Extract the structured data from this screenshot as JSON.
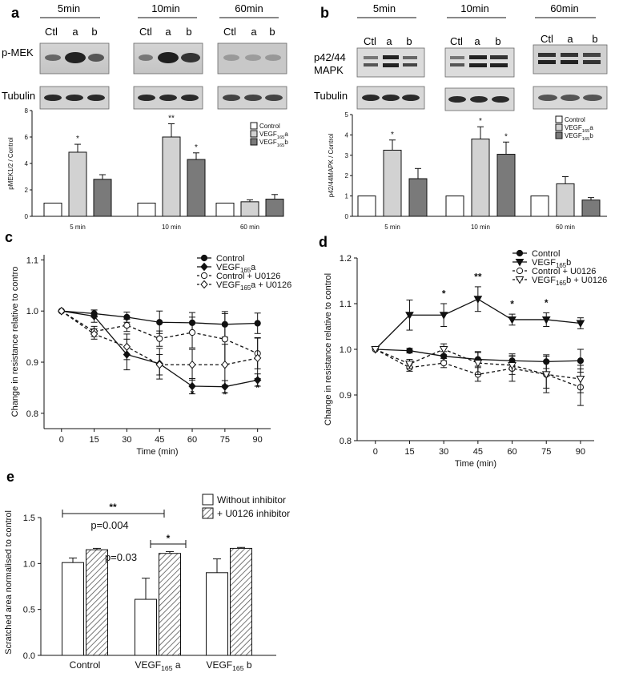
{
  "panels": {
    "a": {
      "letter": "a",
      "times": [
        "5min",
        "10min",
        "60min"
      ],
      "lanes": [
        "Ctl",
        "a",
        "b"
      ],
      "rows": [
        "p-MEK",
        "Tubulin"
      ],
      "chart_data": {
        "type": "bar",
        "categories": [
          "5 min",
          "10 min",
          "60 min"
        ],
        "series": [
          {
            "name": "Control",
            "values": [
              1.0,
              1.0,
              1.0
            ],
            "errors": [
              0,
              0,
              0
            ]
          },
          {
            "name": "VEGF165a",
            "values": [
              4.85,
              6.0,
              1.1
            ],
            "errors": [
              0.6,
              1.0,
              0.15
            ]
          },
          {
            "name": "VEGF165b",
            "values": [
              2.8,
              4.3,
              1.3
            ],
            "errors": [
              0.35,
              0.5,
              0.35
            ]
          }
        ],
        "legend_parts": [
          {
            "main": "Control",
            "sub": "",
            "tail": ""
          },
          {
            "main": "VEGF",
            "sub": "165",
            "tail": "a"
          },
          {
            "main": "VEGF",
            "sub": "165",
            "tail": "b"
          }
        ],
        "significance": [
          [
            "",
            "*",
            ""
          ],
          [
            "",
            "**",
            "*"
          ],
          [
            "",
            "",
            ""
          ]
        ],
        "ylabel": "pMEK1/2 / Control",
        "yticks": [
          "0",
          "2",
          "4",
          "6",
          "8"
        ],
        "ylim": [
          0,
          8
        ],
        "legend": "top-right"
      }
    },
    "b": {
      "letter": "b",
      "times": [
        "5min",
        "10min",
        "60min"
      ],
      "lanes": [
        "Ctl",
        "a",
        "b"
      ],
      "rows": [
        "p42/44",
        "MAPK",
        "Tubulin"
      ],
      "chart_data": {
        "type": "bar",
        "categories": [
          "5 min",
          "10 min",
          "60 min"
        ],
        "series": [
          {
            "name": "Control",
            "values": [
              1.0,
              1.0,
              1.0
            ],
            "errors": [
              0,
              0,
              0
            ]
          },
          {
            "name": "VEGF165a",
            "values": [
              3.25,
              3.8,
              1.6
            ],
            "errors": [
              0.5,
              0.6,
              0.35
            ]
          },
          {
            "name": "VEGF165b",
            "values": [
              1.85,
              3.05,
              0.8
            ],
            "errors": [
              0.5,
              0.6,
              0.12
            ]
          }
        ],
        "legend_parts": [
          {
            "main": "Control",
            "sub": "",
            "tail": ""
          },
          {
            "main": "VEGF",
            "sub": "165",
            "tail": "a"
          },
          {
            "main": "VEGF",
            "sub": "165",
            "tail": "b"
          }
        ],
        "significance": [
          [
            "",
            "*",
            ""
          ],
          [
            "",
            "*",
            "*"
          ],
          [
            "",
            "",
            ""
          ]
        ],
        "ylabel": "p42/44MAPK / Control",
        "yticks": [
          "0",
          "1",
          "2",
          "3",
          "4",
          "5"
        ],
        "ylim": [
          0,
          5
        ],
        "legend": "top-right"
      }
    },
    "c": {
      "letter": "c",
      "chart_data": {
        "type": "line",
        "x": [
          0,
          15,
          30,
          45,
          60,
          75,
          90
        ],
        "xticks": [
          "0",
          "15",
          "30",
          "45",
          "60",
          "75",
          "90"
        ],
        "xlabel": "Time (min)",
        "ylabel": "Change in resistance relative to contro",
        "yticks": [
          "0.8",
          "0.9",
          "1.0",
          "1.1"
        ],
        "ylim": [
          0.77,
          1.11
        ],
        "xlim": [
          -8,
          96
        ],
        "series": [
          {
            "name": "Control",
            "marker": "filled-circle",
            "dash": false,
            "values": [
              1.0,
              0.995,
              0.988,
              0.978,
              0.977,
              0.974,
              0.976
            ],
            "errors": [
              0,
              0.007,
              0.01,
              0.022,
              0.02,
              0.025,
              0.02
            ]
          },
          {
            "name": "VEGF165a",
            "marker": "filled-diamond",
            "dash": false,
            "values": [
              1.0,
              0.99,
              0.915,
              0.897,
              0.853,
              0.852,
              0.865
            ],
            "errors": [
              0,
              0.012,
              0.03,
              0.03,
              0.015,
              0.012,
              0.012
            ]
          },
          {
            "name": "Control + U0126",
            "marker": "open-circle",
            "dash": true,
            "values": [
              1.0,
              0.96,
              0.972,
              0.946,
              0.958,
              0.945,
              0.917
            ],
            "errors": [
              0,
              0.01,
              0.012,
              0.015,
              0.03,
              0.05,
              0.03
            ]
          },
          {
            "name": "VEGF165a + U0126",
            "marker": "open-diamond",
            "dash": true,
            "values": [
              1.0,
              0.955,
              0.93,
              0.895,
              0.895,
              0.895,
              0.908
            ],
            "errors": [
              0,
              0.01,
              0.025,
              0.02,
              0.03,
              0.04,
              0.04
            ]
          }
        ],
        "legend_parts": [
          {
            "main": "Control",
            "sub": "",
            "tail": ""
          },
          {
            "main": "VEGF",
            "sub": "165",
            "tail": "a"
          },
          {
            "main": "Control + U0126",
            "sub": "",
            "tail": ""
          },
          {
            "main": "VEGF",
            "sub": "165",
            "tail": "a + U0126"
          }
        ],
        "significance": [
          {
            "x": 60,
            "y": 0.832,
            "label": "*"
          },
          {
            "x": 75,
            "y": 0.83,
            "label": "*"
          },
          {
            "x": 90,
            "y": 0.844,
            "label": "*"
          }
        ],
        "legend": "top-right"
      }
    },
    "d": {
      "letter": "d",
      "chart_data": {
        "type": "line",
        "x": [
          0,
          15,
          30,
          45,
          60,
          75,
          90
        ],
        "xticks": [
          "0",
          "15",
          "30",
          "45",
          "60",
          "75",
          "90"
        ],
        "xlabel": "Time (min)",
        "ylabel": "Change in resistance relative to control",
        "yticks": [
          "0.8",
          "0.9",
          "1.0",
          "1.1",
          "1.2"
        ],
        "ylim": [
          0.8,
          1.2
        ],
        "xlim": [
          -8,
          96
        ],
        "series": [
          {
            "name": "Control",
            "marker": "filled-circle",
            "dash": false,
            "values": [
              1.0,
              0.997,
              0.985,
              0.978,
              0.975,
              0.973,
              0.975
            ],
            "errors": [
              0,
              0.005,
              0.01,
              0.015,
              0.015,
              0.015,
              0.025
            ]
          },
          {
            "name": "VEGF165b",
            "marker": "filled-triangle-down",
            "dash": false,
            "values": [
              1.0,
              1.075,
              1.075,
              1.11,
              1.065,
              1.065,
              1.057
            ],
            "errors": [
              0,
              0.033,
              0.025,
              0.027,
              0.012,
              0.015,
              0.012
            ]
          },
          {
            "name": "Control + U0126",
            "marker": "open-circle",
            "dash": true,
            "values": [
              1.0,
              0.96,
              0.97,
              0.945,
              0.958,
              0.945,
              0.917
            ],
            "errors": [
              0,
              0.008,
              0.01,
              0.015,
              0.028,
              0.04,
              0.04
            ]
          },
          {
            "name": "VEGF165b + U0126",
            "marker": "open-triangle-down",
            "dash": true,
            "values": [
              1.0,
              0.968,
              1.0,
              0.97,
              0.965,
              0.945,
              0.935
            ],
            "errors": [
              0,
              0.01,
              0.012,
              0.025,
              0.02,
              0.03,
              0.03
            ]
          }
        ],
        "legend_parts": [
          {
            "main": "Control",
            "sub": "",
            "tail": ""
          },
          {
            "main": "VEGF",
            "sub": "165",
            "tail": "b"
          },
          {
            "main": "Control + U0126",
            "sub": "",
            "tail": ""
          },
          {
            "main": "VEGF",
            "sub": "165",
            "tail": "b + U0126"
          }
        ],
        "significance": [
          {
            "x": 30,
            "y": 1.115,
            "label": "*"
          },
          {
            "x": 45,
            "y": 1.152,
            "label": "**"
          },
          {
            "x": 60,
            "y": 1.092,
            "label": "*"
          },
          {
            "x": 75,
            "y": 1.095,
            "label": "*"
          }
        ],
        "legend": "top-right"
      }
    },
    "e": {
      "letter": "e",
      "chart_data": {
        "type": "bar",
        "categories": [
          "Control",
          "VEGF165 a",
          "VEGF165 b"
        ],
        "category_parts": [
          {
            "main": "Control",
            "sub": "",
            "tail": ""
          },
          {
            "main": "VEGF",
            "sub": "165",
            "tail": " a"
          },
          {
            "main": "VEGF",
            "sub": "165",
            "tail": " b"
          }
        ],
        "series": [
          {
            "name": "Without inhibitor",
            "values": [
              1.01,
              0.61,
              0.9
            ],
            "errors": [
              0.05,
              0.23,
              0.15
            ]
          },
          {
            "name": "+ U0126 inhibitor",
            "values": [
              1.15,
              1.11,
              1.165
            ],
            "errors": [
              0.015,
              0.02,
              0.01
            ]
          }
        ],
        "ylabel": "Scratched area normalised to control",
        "yticks": [
          "0.0",
          "0.5",
          "1.0",
          "1.5"
        ],
        "ylim": [
          0,
          1.5
        ],
        "brackets": [
          {
            "label": "**",
            "pvalue": "p=0.004"
          },
          {
            "label": "*",
            "pvalue": "p=0.03"
          }
        ],
        "legend": "top-right"
      }
    }
  }
}
